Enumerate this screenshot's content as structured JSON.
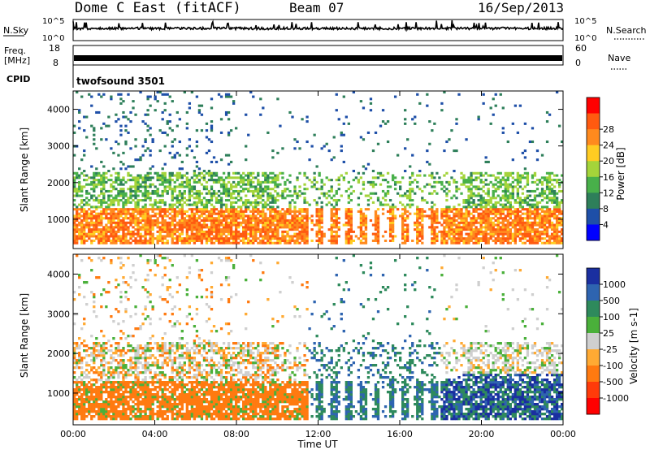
{
  "header": {
    "station": "Dome C East (fitACF)",
    "beam": "Beam 07",
    "date": "16/Sep/2013"
  },
  "top_panels": {
    "nsky_label": "N.Sky",
    "nsky_ticks": [
      "10^5",
      "10^0"
    ],
    "nsearch_label": "N.Search",
    "nsearch_ticks": [
      "10^5",
      "10^0"
    ],
    "freq_label_line1": "Freq.",
    "freq_label_line2": "[MHz]",
    "freq_ticks": [
      "18",
      "8"
    ],
    "nave_label": "Nave",
    "nave_ticks": [
      "60",
      "0"
    ],
    "cpid_label": "CPID",
    "cpid_value": "twofsound 3501"
  },
  "chart_data": [
    {
      "type": "heatmap",
      "panel": "power",
      "title": "",
      "xlabel": "",
      "ylabel": "Slant Range [km]",
      "y_ticks": [
        "1000",
        "2000",
        "3000",
        "4000"
      ],
      "ylim": [
        200,
        4500
      ],
      "x_ticks": [
        "00:00",
        "04:00",
        "08:00",
        "12:00",
        "16:00",
        "20:00",
        "00:00"
      ],
      "colorbar": {
        "label": "Power [dB]",
        "ticks": [
          "4",
          "8",
          "12",
          "16",
          "20",
          "24",
          "28"
        ],
        "colors": [
          "#0000ff",
          "#1e4fa8",
          "#2e7f5a",
          "#48b04a",
          "#a4d43a",
          "#ffcc22",
          "#ff8a1e",
          "#ff5a10",
          "#ff0000"
        ]
      },
      "data_summary": {
        "main_band_km": [
          500,
          1300
        ],
        "main_band_power_db": 28,
        "upper_band_km": [
          1500,
          2300
        ],
        "upper_band_power_db": 16,
        "sparse_high_range_km": [
          2300,
          4500
        ],
        "sparse_power_db": 6,
        "gap_hours": [
          11.4,
          18.0
        ]
      }
    },
    {
      "type": "heatmap",
      "panel": "velocity",
      "title": "",
      "xlabel": "Time UT",
      "ylabel": "Slant Range [km]",
      "y_ticks": [
        "1000",
        "2000",
        "3000",
        "4000"
      ],
      "ylim": [
        200,
        4500
      ],
      "x_ticks": [
        "00:00",
        "04:00",
        "08:00",
        "12:00",
        "16:00",
        "20:00",
        "00:00"
      ],
      "colorbar": {
        "label": "Velocity [m s-1]",
        "ticks": [
          "1000",
          "500",
          "100",
          "25",
          "-25",
          "-100",
          "-500",
          "-1000"
        ],
        "colors": [
          "#1a2fa0",
          "#2e64b0",
          "#2e8a5c",
          "#4ab03a",
          "#cfcfcf",
          "#ffaa33",
          "#ff7a10",
          "#ff3b0a",
          "#ff0000"
        ]
      },
      "data_summary": {
        "morning_lower_band_velocity": -100,
        "morning_upper_band_velocity": 0,
        "afternoon_band_velocity": 300,
        "evening_band_velocity": 800,
        "gap_hours": [
          11.4,
          18.0
        ]
      }
    }
  ]
}
